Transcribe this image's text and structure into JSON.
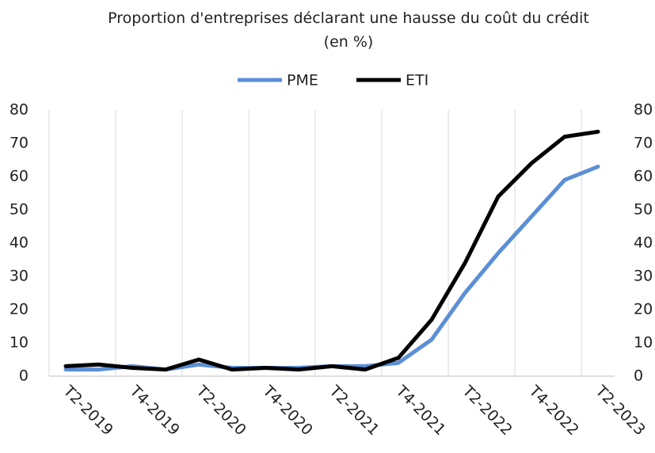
{
  "chart_data": {
    "type": "line",
    "title": "Proportion d'entreprises déclarant une hausse du coût du crédit (en %)",
    "categories": [
      "T2-2019",
      null,
      "T4-2019",
      null,
      "T2-2020",
      null,
      "T4-2020",
      null,
      "T2-2021",
      null,
      "T4-2021",
      null,
      "T2-2022",
      null,
      "T4-2022",
      null,
      "T2-2023"
    ],
    "series": [
      {
        "name": "PME",
        "color": "#5b8fd6",
        "values": [
          2,
          2,
          3,
          2,
          3.5,
          2.5,
          2.5,
          2.5,
          3,
          3,
          4,
          11,
          25,
          37,
          48,
          59,
          63
        ]
      },
      {
        "name": "ETI",
        "color": "#000000",
        "values": [
          3,
          3.5,
          2.5,
          2,
          5,
          2,
          2.5,
          2,
          3,
          2,
          5.5,
          17,
          34,
          54,
          64,
          72,
          73.5
        ]
      }
    ],
    "ylim": [
      0,
      80
    ],
    "yticks": [
      0,
      10,
      20,
      30,
      40,
      50,
      60,
      70,
      80
    ],
    "y2lim": [
      0,
      80
    ],
    "y2ticks": [
      0,
      10,
      20,
      30,
      40,
      50,
      60,
      70,
      80
    ],
    "legend": "top"
  }
}
